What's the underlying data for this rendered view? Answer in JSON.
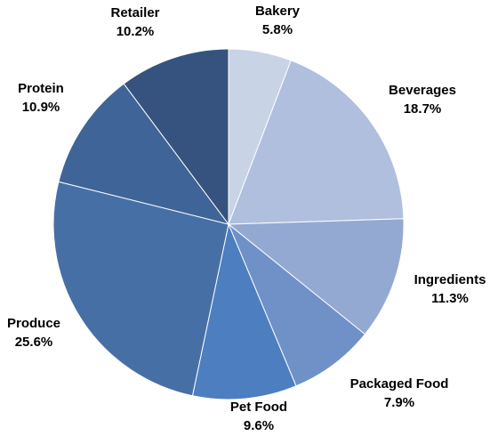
{
  "chart_data": {
    "type": "pie",
    "title": "",
    "categories": [
      "Bakery",
      "Beverages",
      "Ingredients",
      "Packaged Food",
      "Pet Food",
      "Produce",
      "Protein",
      "Retailer"
    ],
    "values": [
      5.8,
      18.7,
      11.3,
      7.9,
      9.6,
      25.6,
      10.9,
      10.2
    ],
    "value_labels": [
      "5.8%",
      "18.7%",
      "11.3%",
      "7.9%",
      "9.6%",
      "25.6%",
      "10.9%",
      "10.2%"
    ],
    "colors": [
      "#C9D3E6",
      "#AFBFDD",
      "#94A9D2",
      "#7090C8",
      "#4C7EC0",
      "#4670A5",
      "#3F6498",
      "#35537E"
    ],
    "legend": "none",
    "start_angle": "12 o'clock",
    "direction": "clockwise"
  }
}
